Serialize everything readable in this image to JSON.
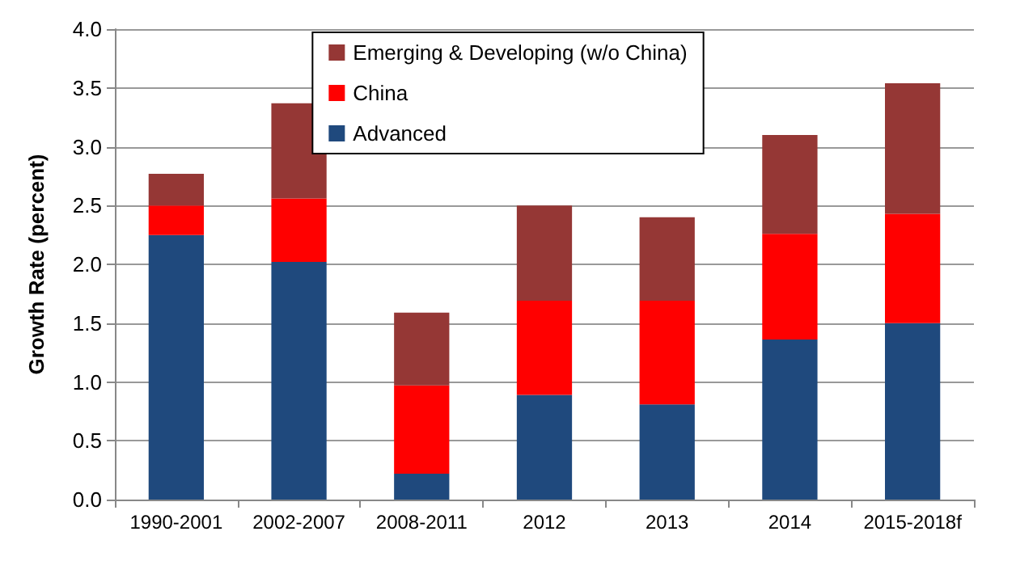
{
  "chart_data": {
    "type": "bar",
    "stacked": true,
    "ylabel": "Growth Rate (percent)",
    "categories": [
      "1990-2001",
      "2002-2007",
      "2008-2011",
      "2012",
      "2013",
      "2014",
      "2015-2018f"
    ],
    "series": [
      {
        "name": "Advanced",
        "color": "#1f497d",
        "values": [
          2.25,
          2.02,
          0.22,
          0.89,
          0.81,
          1.36,
          1.5
        ]
      },
      {
        "name": "China",
        "color": "#ff0000",
        "values": [
          0.25,
          0.54,
          0.75,
          0.8,
          0.88,
          0.9,
          0.93
        ]
      },
      {
        "name": "Emerging & Developing (w/o China)",
        "color": "#953735",
        "values": [
          0.27,
          0.81,
          0.62,
          0.81,
          0.71,
          0.84,
          1.11
        ]
      }
    ],
    "ylim": [
      0,
      4
    ],
    "yticks": [
      {
        "value": 0,
        "label": "0.0"
      },
      {
        "value": 0.5,
        "label": "0.5"
      },
      {
        "value": 1,
        "label": "1.0"
      },
      {
        "value": 1.5,
        "label": "1.5"
      },
      {
        "value": 2,
        "label": "2.0"
      },
      {
        "value": 2.5,
        "label": "2.5"
      },
      {
        "value": 3,
        "label": "3.0"
      },
      {
        "value": 3.5,
        "label": "3.5"
      },
      {
        "value": 4,
        "label": "4.0"
      }
    ],
    "grid": "y",
    "legend": "top"
  }
}
